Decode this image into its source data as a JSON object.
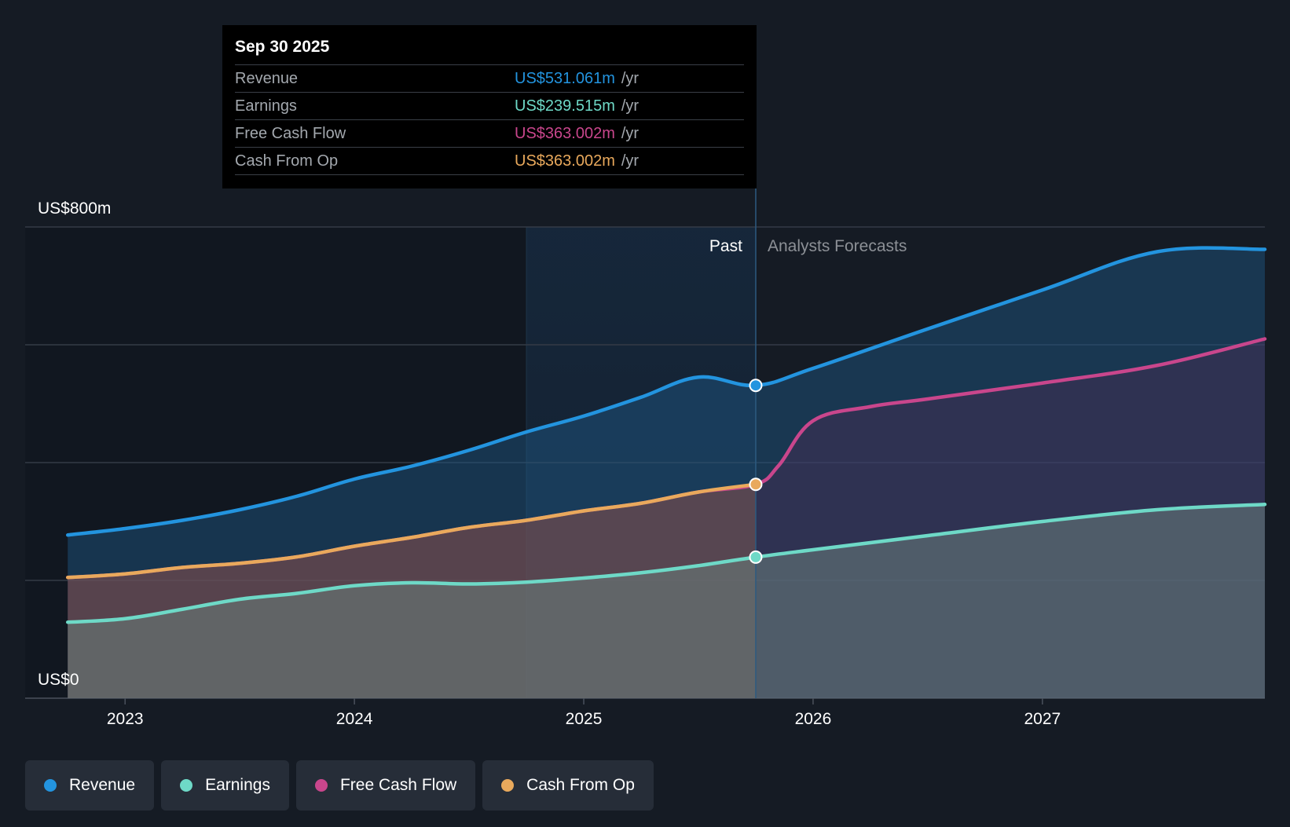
{
  "colors": {
    "background": "#151b24",
    "revenue": "#2394df",
    "earnings": "#6ed9c7",
    "free_cash_flow": "#c9468c",
    "cash_from_op": "#e9a95c",
    "grid": "#343b46"
  },
  "tooltip": {
    "date": "Sep 30 2025",
    "rows": [
      {
        "label": "Revenue",
        "value": "US$531.061m",
        "unit": "/yr",
        "color": "#2394df"
      },
      {
        "label": "Earnings",
        "value": "US$239.515m",
        "unit": "/yr",
        "color": "#6ed9c7"
      },
      {
        "label": "Free Cash Flow",
        "value": "US$363.002m",
        "unit": "/yr",
        "color": "#c9468c"
      },
      {
        "label": "Cash From Op",
        "value": "US$363.002m",
        "unit": "/yr",
        "color": "#e9a95c"
      }
    ]
  },
  "legend": [
    {
      "label": "Revenue",
      "color": "#2394df"
    },
    {
      "label": "Earnings",
      "color": "#6ed9c7"
    },
    {
      "label": "Free Cash Flow",
      "color": "#c9468c"
    },
    {
      "label": "Cash From Op",
      "color": "#e9a95c"
    }
  ],
  "chart_data": {
    "type": "area",
    "title": "",
    "xlabel": "",
    "ylabel": "",
    "x_range": [
      2022.78,
      2027.97
    ],
    "ylim": [
      0,
      800
    ],
    "y_tick_labels": {
      "top": "US$800m",
      "bottom": "US$0"
    },
    "y_gridlines": [
      0,
      200,
      400,
      600,
      800
    ],
    "x_ticks": [
      2023,
      2024,
      2025,
      2026,
      2027
    ],
    "x_tick_labels": [
      "2023",
      "2024",
      "2025",
      "2026",
      "2027"
    ],
    "past_label": "Past",
    "forecast_label": "Analysts Forecasts",
    "divider_x": 2025.75,
    "highlight_band": [
      2024.75,
      2025.75
    ],
    "series": [
      {
        "name": "Revenue",
        "key": "revenue",
        "points": [
          [
            2022.75,
            277
          ],
          [
            2023.0,
            288
          ],
          [
            2023.25,
            302
          ],
          [
            2023.5,
            320
          ],
          [
            2023.75,
            343
          ],
          [
            2024.0,
            372
          ],
          [
            2024.25,
            394
          ],
          [
            2024.5,
            421
          ],
          [
            2024.75,
            452
          ],
          [
            2025.0,
            479
          ],
          [
            2025.25,
            511
          ],
          [
            2025.5,
            545
          ],
          [
            2025.75,
            531.061
          ],
          [
            2026.0,
            560
          ],
          [
            2026.5,
            627
          ],
          [
            2027.0,
            693
          ],
          [
            2027.5,
            758
          ],
          [
            2027.97,
            762
          ]
        ]
      },
      {
        "name": "Earnings",
        "key": "earnings",
        "points": [
          [
            2022.75,
            129
          ],
          [
            2023.0,
            135
          ],
          [
            2023.25,
            151
          ],
          [
            2023.5,
            168
          ],
          [
            2023.75,
            178
          ],
          [
            2024.0,
            191
          ],
          [
            2024.25,
            196
          ],
          [
            2024.5,
            194
          ],
          [
            2024.75,
            197
          ],
          [
            2025.0,
            204
          ],
          [
            2025.25,
            213
          ],
          [
            2025.5,
            225
          ],
          [
            2025.75,
            239.515
          ],
          [
            2026.0,
            252
          ],
          [
            2026.5,
            276
          ],
          [
            2027.0,
            300
          ],
          [
            2027.5,
            320
          ],
          [
            2027.97,
            329
          ]
        ]
      },
      {
        "name": "Free Cash Flow",
        "key": "free_cash_flow",
        "points": [
          [
            2022.75,
            205
          ],
          [
            2023.0,
            211
          ],
          [
            2023.25,
            222
          ],
          [
            2023.5,
            229
          ],
          [
            2023.75,
            240
          ],
          [
            2024.0,
            258
          ],
          [
            2024.25,
            273
          ],
          [
            2024.5,
            290
          ],
          [
            2024.75,
            302
          ],
          [
            2025.0,
            318
          ],
          [
            2025.25,
            331
          ],
          [
            2025.5,
            350
          ],
          [
            2025.75,
            363.002
          ],
          [
            2025.85,
            395
          ],
          [
            2026.0,
            471
          ],
          [
            2026.25,
            495
          ],
          [
            2026.5,
            508
          ],
          [
            2027.0,
            535
          ],
          [
            2027.5,
            565
          ],
          [
            2027.97,
            610
          ]
        ]
      },
      {
        "name": "Cash From Op",
        "key": "cash_from_op",
        "points": [
          [
            2022.75,
            205
          ],
          [
            2023.0,
            211
          ],
          [
            2023.25,
            222
          ],
          [
            2023.5,
            229
          ],
          [
            2023.75,
            240
          ],
          [
            2024.0,
            258
          ],
          [
            2024.25,
            273
          ],
          [
            2024.5,
            290
          ],
          [
            2024.75,
            302
          ],
          [
            2025.0,
            318
          ],
          [
            2025.25,
            331
          ],
          [
            2025.5,
            350
          ],
          [
            2025.75,
            363.002
          ]
        ]
      }
    ]
  }
}
